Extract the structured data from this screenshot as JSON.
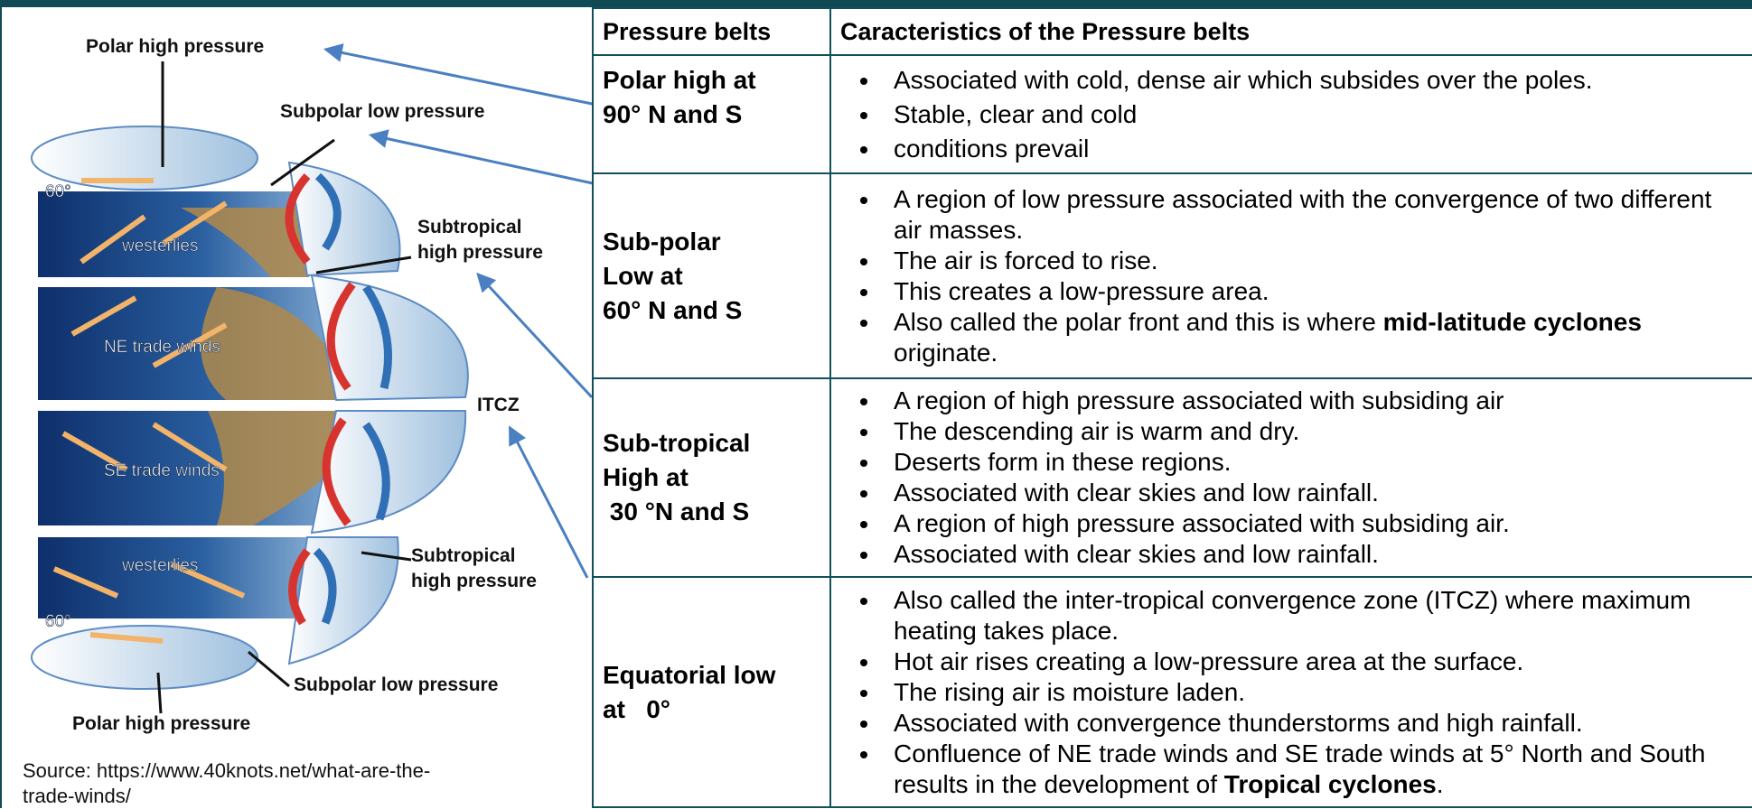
{
  "diagram": {
    "labels": [
      {
        "lines": [
          "Polar high pressure"
        ]
      },
      {
        "lines": [
          "Subpolar low pressure"
        ]
      },
      {
        "lines": [
          "Subtropical",
          "high pressure"
        ]
      },
      {
        "lines": [
          "ITCZ"
        ]
      },
      {
        "lines": [
          "Subtropical",
          "high pressure"
        ]
      },
      {
        "lines": [
          "Subpolar low pressure"
        ]
      },
      {
        "lines": [
          "Polar high pressure"
        ]
      }
    ],
    "globe_labels": [
      "60°",
      "westerlies",
      "NE trade winds",
      "SE trade winds",
      "westerlies",
      "60°"
    ],
    "source": [
      "Source: https://www.40knots.net/what-are-the-",
      "trade-winds/"
    ]
  },
  "table": {
    "header": [
      "Pressure belts",
      "Caracteristics of the Pressure belts"
    ],
    "rows": [
      {
        "belt": [
          "Polar high at",
          "90° N and S"
        ],
        "points": [
          "Associated with cold, dense air which subsides over the poles.",
          "Stable, clear and cold",
          "conditions prevail"
        ]
      },
      {
        "belt": [
          "Sub-polar",
          "Low at",
          "60° N and S"
        ],
        "points": [
          "A region of low pressure associated with the convergence of two different air masses.",
          "The air is forced to rise.",
          "This creates a low-pressure area.",
          [
            {
              "text": "Also called the polar front and this is where ",
              "bold": false
            },
            {
              "text": "mid-latitude cyclones",
              "bold": true
            },
            {
              "text": " originate.",
              "bold": false
            }
          ]
        ]
      },
      {
        "belt": [
          "Sub-tropical",
          "High at",
          " 30 °N and S"
        ],
        "points": [
          "A region of high pressure associated with subsiding air",
          "The descending air is warm and dry.",
          "Deserts form in these regions.",
          "Associated with clear skies and low rainfall.",
          "A region of high pressure associated with subsiding air.",
          "Associated with clear skies and low rainfall."
        ]
      },
      {
        "belt": [
          "Equatorial low",
          "at   0°"
        ],
        "points": [
          "Also called the inter-tropical convergence zone (ITCZ) where maximum heating takes place.",
          "Hot air rises creating a low-pressure area at the surface.",
          "The rising air is moisture laden.",
          "Associated with convergence thunderstorms and high rainfall.",
          [
            {
              "text": "Confluence of NE trade winds and SE trade winds at 5° North and South results in the development of ",
              "bold": false
            },
            {
              "text": "Tropical cyclones",
              "bold": true
            },
            {
              "text": ".",
              "bold": false
            }
          ]
        ]
      }
    ]
  }
}
